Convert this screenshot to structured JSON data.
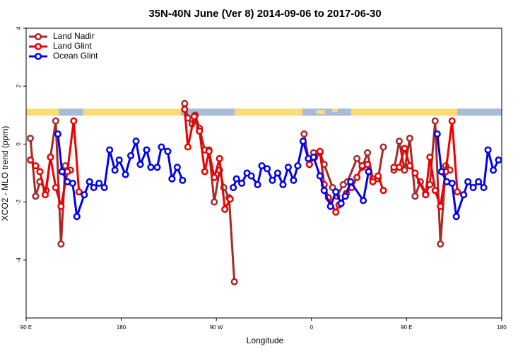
{
  "chart_data": {
    "type": "line",
    "title": "35N-40N June (Ver 8)   2014-09-06 to 2017-06-30",
    "x_label": "Longitude",
    "y_label": "XCO2 - MLO trend (ppm)",
    "xlim": [
      90,
      540
    ],
    "ylim": [
      -6,
      4
    ],
    "xticks": [
      {
        "value": 90,
        "label": "90 E"
      },
      {
        "value": 180,
        "label": "180"
      },
      {
        "value": 270,
        "label": "90 W"
      },
      {
        "value": 360,
        "label": "0"
      },
      {
        "value": 450,
        "label": "90 E"
      },
      {
        "value": 540,
        "label": "180"
      }
    ],
    "yticks": [
      -4,
      -2,
      0,
      2,
      4
    ],
    "legend": "top-left",
    "series": [
      {
        "name": "Land Nadir",
        "color": "#a52a2a",
        "x": [
          94,
          99,
          103,
          109,
          113,
          118,
          123,
          127,
          132,
          null,
          240,
          243,
          247,
          250,
          254,
          259,
          263,
          268,
          273,
          277,
          282,
          287,
          null,
          353,
          358,
          362,
          368,
          372,
          380,
          384,
          390,
          394,
          403,
          408,
          413,
          418,
          423,
          428,
          null,
          438,
          443,
          448,
          453,
          458,
          463,
          468,
          472,
          477,
          482,
          487,
          491
        ],
        "values": [
          0.2,
          -1.8,
          -1.3,
          -1.6,
          -0.45,
          0.8,
          -3.45,
          -0.75,
          -0.9,
          null,
          1.4,
          0.9,
          0.7,
          1.0,
          0.55,
          -0.2,
          -0.2,
          -2.0,
          -0.9,
          -1.5,
          -1.85,
          -4.75,
          null,
          0.35,
          -0.7,
          -0.3,
          -0.3,
          -0.7,
          -1.5,
          -1.8,
          -1.4,
          -1.3,
          -0.5,
          -0.8,
          -0.3,
          -1.2,
          -1.2,
          -0.1,
          null,
          -0.9,
          0.1,
          -0.9,
          0.2,
          -1.8,
          -1.3,
          -1.7,
          -1.4,
          0.8,
          -3.45,
          -0.75,
          -0.9
        ]
      },
      {
        "name": "Land Glint",
        "color": "#ee0000",
        "x": [
          94,
          99,
          103,
          108,
          113,
          118,
          123,
          129,
          135,
          140,
          null,
          240,
          243,
          249,
          254,
          259,
          263,
          268,
          273,
          278,
          283,
          null,
          358,
          363,
          368,
          372,
          376,
          383,
          386,
          393,
          398,
          403,
          408,
          413,
          418,
          423,
          428,
          null,
          438,
          443,
          448,
          453,
          458,
          468,
          472,
          477,
          482,
          487,
          493,
          498
        ],
        "values": [
          -0.55,
          -0.75,
          -0.95,
          -1.75,
          -0.45,
          -1.5,
          -2.15,
          -0.95,
          0.8,
          -1.65,
          null,
          1.2,
          -0.1,
          0.95,
          0.45,
          -0.95,
          -0.25,
          -1.15,
          -0.5,
          -2.25,
          -1.9,
          null,
          -0.7,
          -0.45,
          -0.25,
          -1.4,
          -1.85,
          -2.35,
          -2.1,
          -1.7,
          -1.5,
          -1.15,
          -0.75,
          -0.7,
          -1.3,
          -1.1,
          -1.6,
          null,
          -0.8,
          -0.8,
          -0.15,
          -0.75,
          -1.0,
          -1.75,
          -0.45,
          -1.6,
          -2.15,
          -0.95,
          0.8,
          -1.65
        ]
      },
      {
        "name": "Ocean Glint",
        "color": "#0000ee",
        "x": [
          120,
          124,
          129,
          134,
          138,
          145,
          150,
          154,
          159,
          164,
          169,
          174,
          178,
          184,
          189,
          194,
          198,
          204,
          208,
          214,
          218,
          224,
          228,
          233,
          238,
          null,
          286,
          289,
          294,
          299,
          303,
          309,
          313,
          318,
          323,
          328,
          333,
          338,
          343,
          347,
          352,
          357,
          362,
          368,
          372,
          378,
          383,
          388,
          392,
          397,
          409,
          414,
          null,
          479,
          483,
          488,
          493,
          497,
          504,
          508,
          513,
          518,
          523,
          527,
          532,
          537
        ],
        "values": [
          0.35,
          -0.95,
          -1.3,
          -1.35,
          -2.5,
          -1.75,
          -1.3,
          -1.5,
          -1.35,
          -1.5,
          -0.2,
          -0.9,
          -0.55,
          -1.05,
          -0.4,
          0.1,
          -0.7,
          -0.2,
          -0.8,
          -0.8,
          -0.1,
          -0.25,
          -1.2,
          -0.8,
          -1.25,
          null,
          -1.5,
          -1.2,
          -1.35,
          -1.0,
          -1.1,
          -1.4,
          -0.75,
          -0.85,
          -1.25,
          -1.0,
          -1.4,
          -0.8,
          -1.25,
          -0.75,
          0.1,
          -0.5,
          -0.45,
          -1.1,
          -1.6,
          -2.15,
          -1.65,
          -2.05,
          -1.8,
          -1.3,
          -1.95,
          -0.95,
          null,
          0.35,
          -0.95,
          -1.3,
          -1.35,
          -2.5,
          -1.75,
          -1.3,
          -1.5,
          -1.3,
          -1.5,
          -0.2,
          -0.9,
          -0.55
        ]
      }
    ]
  }
}
